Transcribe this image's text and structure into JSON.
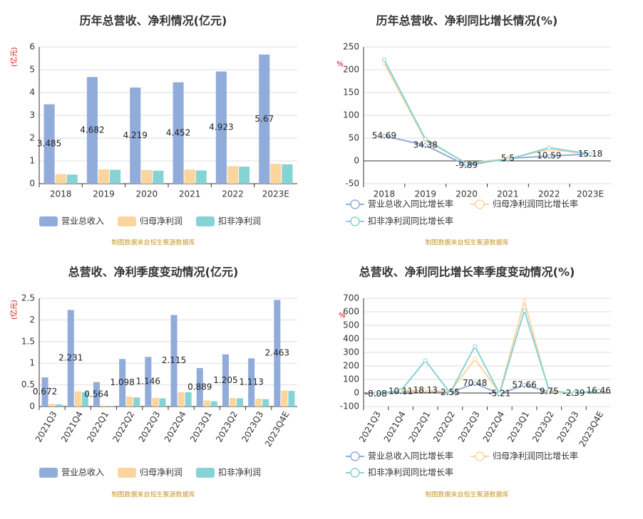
{
  "chart_data": [
    {
      "type": "bar",
      "title": "历年总营收、净利情况(亿元)",
      "y_label": "(亿元)",
      "source": "制图数据来自恒生聚源数据库",
      "categories": [
        "2018",
        "2019",
        "2020",
        "2021",
        "2022",
        "2023E"
      ],
      "series": [
        {
          "name": "营业总收入",
          "color": "#91acdb",
          "show_labels": true,
          "values": [
            3.485,
            4.682,
            4.219,
            4.452,
            4.923,
            5.67
          ]
        },
        {
          "name": "归母净利润",
          "color": "#fcd59c",
          "values": [
            0.42,
            0.63,
            0.6,
            0.62,
            0.77,
            0.87
          ]
        },
        {
          "name": "扣非净利润",
          "color": "#86d3d6",
          "values": [
            0.4,
            0.61,
            0.57,
            0.58,
            0.75,
            0.85
          ]
        }
      ],
      "ylim": [
        0,
        6
      ],
      "yticks": [
        0,
        1,
        2,
        3,
        4,
        5,
        6
      ],
      "grid": true
    },
    {
      "type": "line",
      "title": "历年总营收、净利同比增长情况(%)",
      "y_label": "%",
      "source": "制图数据来自恒生聚源数据库",
      "categories": [
        "2018",
        "2019",
        "2020",
        "2021",
        "2022",
        "2023E"
      ],
      "series": [
        {
          "name": "营业总收入同比增长率",
          "color": "#91acdb",
          "show_labels": true,
          "values": [
            54.69,
            34.38,
            -9.89,
            5.5,
            10.59,
            15.18
          ]
        },
        {
          "name": "归母净利润同比增长率",
          "color": "#fcd59c",
          "values": [
            215,
            45,
            -5,
            5,
            25,
            15
          ]
        },
        {
          "name": "扣非净利润同比增长率",
          "color": "#86d3d6",
          "values": [
            222,
            48,
            -6,
            3,
            29,
            15
          ]
        }
      ],
      "ylim": [
        -50,
        250
      ],
      "yticks": [
        -50,
        0,
        50,
        100,
        150,
        200,
        250
      ],
      "grid": true
    },
    {
      "type": "bar",
      "title": "总营收、净利季度变动情况(亿元)",
      "y_label": "(亿元)",
      "source": "制图数据来自恒生聚源数据库",
      "categories": [
        "2021Q3",
        "2021Q4",
        "2022Q1",
        "2022Q2",
        "2022Q3",
        "2022Q4",
        "2023Q1",
        "2023Q2",
        "2023Q3",
        "2023Q4E"
      ],
      "series": [
        {
          "name": "营业总收入",
          "color": "#91acdb",
          "show_labels": true,
          "values": [
            0.672,
            2.231,
            0.564,
            1.098,
            1.146,
            2.115,
            0.889,
            1.205,
            1.113,
            2.463
          ]
        },
        {
          "name": "归母净利润",
          "color": "#fcd59c",
          "values": [
            0.06,
            0.35,
            0.02,
            0.23,
            0.2,
            0.33,
            0.14,
            0.2,
            0.18,
            0.37
          ]
        },
        {
          "name": "扣非净利润",
          "color": "#86d3d6",
          "values": [
            0.05,
            0.33,
            0.01,
            0.21,
            0.19,
            0.33,
            0.12,
            0.19,
            0.17,
            0.36
          ]
        }
      ],
      "ylim": [
        0,
        2.5
      ],
      "yticks": [
        0,
        0.5,
        1,
        1.5,
        2,
        2.5
      ],
      "grid": true
    },
    {
      "type": "line",
      "title": "总营收、净利同比增长率季度变动情况(%)",
      "y_label": "%",
      "source": "制图数据来自恒生聚源数据库",
      "categories": [
        "2021Q3",
        "2021Q4",
        "2022Q1",
        "2022Q2",
        "2022Q3",
        "2022Q4",
        "2023Q1",
        "2023Q2",
        "2023Q3",
        "2023Q4E"
      ],
      "series": [
        {
          "name": "营业总收入同比增长率",
          "color": "#91acdb",
          "show_labels": true,
          "values": [
            -8.08,
            10.11,
            18.13,
            2.55,
            70.48,
            -5.21,
            57.66,
            9.75,
            -2.39,
            16.46
          ]
        },
        {
          "name": "归母净利润同比增长率",
          "color": "#fcd59c",
          "values": [
            -5,
            20,
            20,
            10,
            250,
            0,
            680,
            10,
            -10,
            15
          ]
        },
        {
          "name": "扣非净利润同比增长率",
          "color": "#86d3d6",
          "values": [
            -5,
            15,
            240,
            0,
            345,
            -5,
            610,
            20,
            -5,
            15
          ]
        }
      ],
      "ylim": [
        -100,
        700
      ],
      "yticks": [
        -100,
        0,
        100,
        200,
        300,
        400,
        500,
        600,
        700
      ],
      "grid": true
    }
  ]
}
